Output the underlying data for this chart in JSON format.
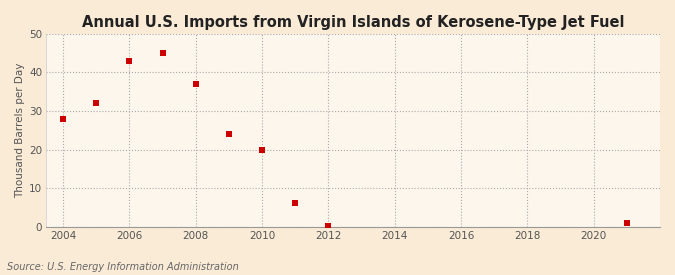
{
  "title": "Annual U.S. Imports from Virgin Islands of Kerosene-Type Jet Fuel",
  "ylabel": "Thousand Barrels per Day",
  "source": "Source: U.S. Energy Information Administration",
  "x": [
    2004,
    2005,
    2006,
    2007,
    2008,
    2009,
    2010,
    2011,
    2012,
    2021
  ],
  "y": [
    28,
    32,
    43,
    45,
    37,
    24,
    20,
    6,
    0.2,
    1
  ],
  "xlim": [
    2003.5,
    2022
  ],
  "ylim": [
    0,
    50
  ],
  "yticks": [
    0,
    10,
    20,
    30,
    40,
    50
  ],
  "xticks": [
    2004,
    2006,
    2008,
    2010,
    2012,
    2014,
    2016,
    2018,
    2020
  ],
  "marker_color": "#cc0000",
  "marker": "s",
  "marker_size": 4,
  "background_color": "#faebd7",
  "plot_bg_color": "#fdf6ec",
  "grid_color": "#aaaaaa",
  "title_fontsize": 10.5,
  "axis_fontsize": 7.5,
  "tick_fontsize": 7.5,
  "source_fontsize": 7
}
